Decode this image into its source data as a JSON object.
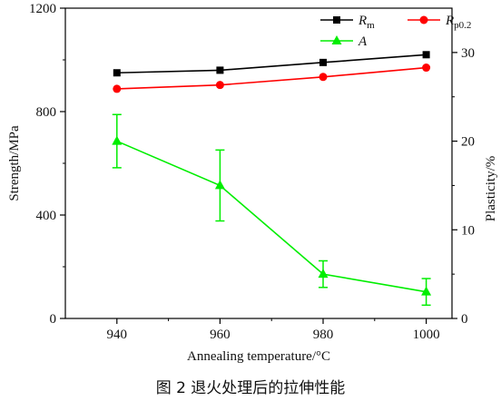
{
  "caption": "图 2  退火处理后的拉伸性能",
  "chart_data": {
    "type": "line",
    "xlabel": "Annealing temperature/°C",
    "ylabel_left": "Strength/MPa",
    "ylabel_right": "Plasticity/%",
    "x": [
      940,
      960,
      980,
      1000
    ],
    "xticks": [
      940,
      960,
      980,
      1000
    ],
    "xlim": [
      930,
      1005
    ],
    "ylim_left": [
      0,
      1200
    ],
    "yticks_left": [
      0,
      400,
      800,
      1200
    ],
    "ylim_right": [
      0,
      35
    ],
    "yticks_right": [
      0,
      10,
      20,
      30
    ],
    "grid": false,
    "legend_position": "top-right",
    "series": [
      {
        "name": "R_m",
        "label_main": "R",
        "label_sub": "m",
        "axis": "left",
        "marker": "square",
        "color": "#000000",
        "values": [
          950,
          960,
          990,
          1020
        ]
      },
      {
        "name": "R_p0.2",
        "label_main": "R",
        "label_sub": "p0.2",
        "axis": "left",
        "marker": "circle",
        "color": "#ff0000",
        "values": [
          888,
          903,
          934,
          970
        ]
      },
      {
        "name": "A",
        "label_main": "A",
        "label_sub": "",
        "axis": "right",
        "marker": "triangle",
        "color": "#00ee00",
        "values": [
          20,
          15,
          5,
          3
        ],
        "err_low": [
          17,
          11,
          3.5,
          1.5
        ],
        "err_high": [
          23,
          19,
          6.5,
          4.5
        ]
      }
    ]
  }
}
